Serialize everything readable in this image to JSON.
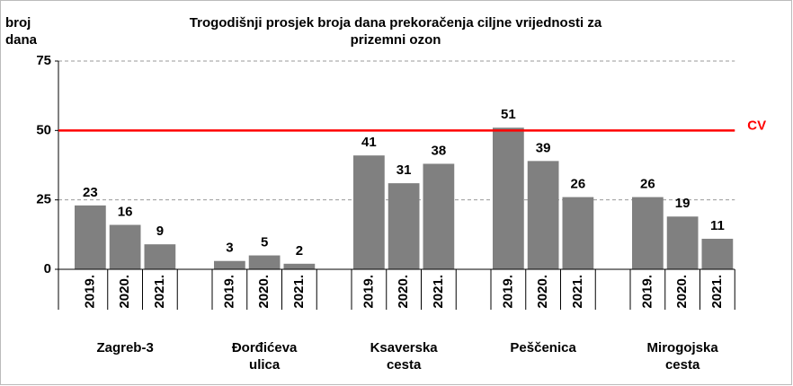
{
  "chart_data": {
    "type": "bar",
    "title": "Trogodišnji prosjek broja dana prekoračenja ciljne vrijednosti za prizemni ozon",
    "y_label": "broj dana",
    "categories": [
      "Zagreb-3",
      "Đorđićeva ulica",
      "Ksaverska cesta",
      "Peščenica",
      "Mirogojska cesta"
    ],
    "series": [
      {
        "name": "2019.",
        "color": "#808080",
        "values": [
          23,
          3,
          41,
          51,
          26
        ]
      },
      {
        "name": "2020.",
        "color": "#808080",
        "values": [
          16,
          5,
          31,
          39,
          19
        ]
      },
      {
        "name": "2021.",
        "color": "#808080",
        "values": [
          9,
          2,
          38,
          26,
          11
        ]
      }
    ],
    "ylim": [
      0,
      75
    ],
    "yticks": [
      0,
      25,
      50,
      75
    ],
    "grid": true,
    "reference_line": {
      "label": "CV",
      "value": 50,
      "color": "#ff0000"
    }
  }
}
